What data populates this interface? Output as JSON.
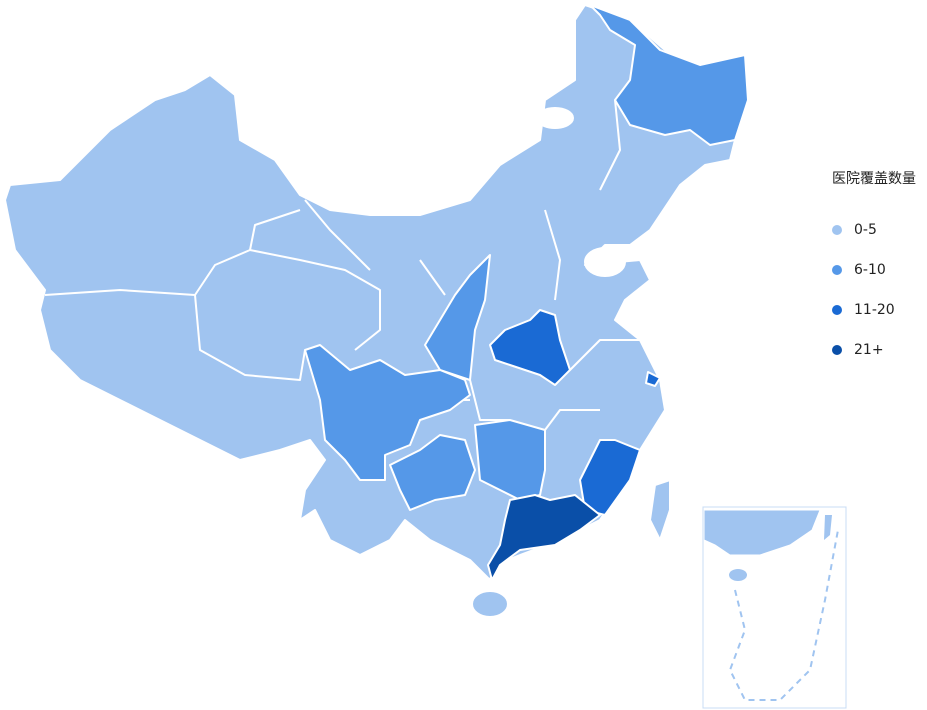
{
  "legend": {
    "title": "医院覆盖数量",
    "items": [
      {
        "label": "0-5",
        "color": "#a0c4f0"
      },
      {
        "label": "6-10",
        "color": "#5598e8"
      },
      {
        "label": "11-20",
        "color": "#1a6ad4"
      },
      {
        "label": "21+",
        "color": "#0a4fa8"
      }
    ]
  },
  "shaded_region_levels": [
    "6-10",
    "6-10",
    "6-10",
    "6-10",
    "6-10",
    "11-20",
    "11-20",
    "11-20",
    "21+"
  ]
}
